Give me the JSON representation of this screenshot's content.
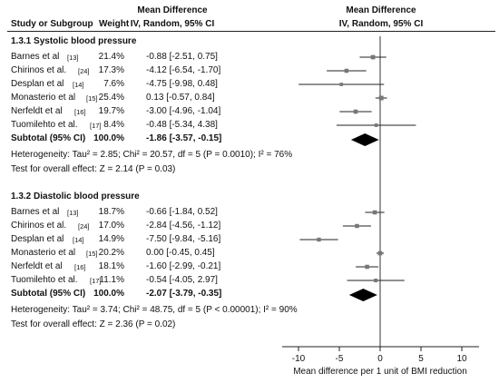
{
  "header": {
    "col_study": "Study or Subgroup",
    "col_weight": "Weight",
    "left_title_1": "Mean Difference",
    "left_title_2": "IV, Random, 95% CI",
    "right_title_1": "Mean Difference",
    "right_title_2": "IV, Random, 95% CI"
  },
  "groups": [
    {
      "title": "1.3.1 Systolic blood pressure",
      "studies": [
        {
          "name": "Barnes et al",
          "ref": "[13]",
          "weight": "21.4%",
          "ci_text": "-0.88 [-2.51, 0.75]",
          "md": -0.88,
          "lo": -2.51,
          "hi": 0.75,
          "w": 21.4
        },
        {
          "name": "Chirinos et al.",
          "ref": "[24]",
          "weight": "17.3%",
          "ci_text": "-4.12 [-6.54, -1.70]",
          "md": -4.12,
          "lo": -6.54,
          "hi": -1.7,
          "w": 17.3
        },
        {
          "name": "Desplan et al",
          "ref": "[14]",
          "weight": "7.6%",
          "ci_text": "-4.75 [-9.98, 0.48]",
          "md": -4.75,
          "lo": -9.98,
          "hi": 0.48,
          "w": 7.6
        },
        {
          "name": "Monasterio et al",
          "ref": "[15]",
          "weight": "25.4%",
          "ci_text": "0.13 [-0.57, 0.84]",
          "md": 0.13,
          "lo": -0.57,
          "hi": 0.84,
          "w": 25.4
        },
        {
          "name": "Nerfeldt et al",
          "ref": "[16]",
          "weight": "19.7%",
          "ci_text": "-3.00 [-4.96, -1.04]",
          "md": -3.0,
          "lo": -4.96,
          "hi": -1.04,
          "w": 19.7
        },
        {
          "name": "Tuomilehto et al.",
          "ref": "[17]",
          "weight": "8.4%",
          "ci_text": "-0.48 [-5.34, 4.38]",
          "md": -0.48,
          "lo": -5.34,
          "hi": 4.38,
          "w": 8.4
        }
      ],
      "subtotal": {
        "label": "Subtotal (95% CI)",
        "weight": "100.0%",
        "ci_text": "-1.86 [-3.57, -0.15]",
        "md": -1.86,
        "lo": -3.57,
        "hi": -0.15
      },
      "heterogeneity": "Heterogeneity: Tau² = 2.85; Chi² = 20.57, df = 5 (P = 0.0010); I² = 76%",
      "overall": "Test for overall effect: Z = 2.14 (P = 0.03)"
    },
    {
      "title": "1.3.2 Diastolic blood pressure",
      "studies": [
        {
          "name": "Barnes et al",
          "ref": "[13]",
          "weight": "18.7%",
          "ci_text": "-0.66 [-1.84, 0.52]",
          "md": -0.66,
          "lo": -1.84,
          "hi": 0.52,
          "w": 18.7
        },
        {
          "name": "Chirinos et al.",
          "ref": "[24]",
          "weight": "17.0%",
          "ci_text": "-2.84 [-4.56, -1.12]",
          "md": -2.84,
          "lo": -4.56,
          "hi": -1.12,
          "w": 17.0
        },
        {
          "name": "Desplan et al",
          "ref": "[14]",
          "weight": "14.9%",
          "ci_text": "-7.50 [-9.84, -5.16]",
          "md": -7.5,
          "lo": -9.84,
          "hi": -5.16,
          "w": 14.9
        },
        {
          "name": "Monasterio et al",
          "ref": "[15]",
          "weight": "20.2%",
          "ci_text": "0.00 [-0.45, 0.45]",
          "md": 0.0,
          "lo": -0.45,
          "hi": 0.45,
          "w": 20.2
        },
        {
          "name": "Nerfeldt et al",
          "ref": "[16]",
          "weight": "18.1%",
          "ci_text": "-1.60 [-2.99, -0.21]",
          "md": -1.6,
          "lo": -2.99,
          "hi": -0.21,
          "w": 18.1
        },
        {
          "name": "Tuomilehto et al.",
          "ref": "[17]",
          "weight": "11.1%",
          "ci_text": "-0.54 [-4.05, 2.97]",
          "md": -0.54,
          "lo": -4.05,
          "hi": 2.97,
          "w": 11.1
        }
      ],
      "subtotal": {
        "label": "Subtotal (95% CI)",
        "weight": "100.0%",
        "ci_text": "-2.07 [-3.79, -0.35]",
        "md": -2.07,
        "lo": -3.79,
        "hi": -0.35
      },
      "heterogeneity": "Heterogeneity: Tau² = 3.74; Chi² = 48.75, df = 5 (P < 0.00001); I² = 90%",
      "overall": "Test for overall effect: Z = 2.36 (P = 0.02)"
    }
  ],
  "chart_data": {
    "type": "forest",
    "x_ticks": [
      "-10",
      "-5",
      "0",
      "5",
      "10"
    ],
    "x_tick_values": [
      -10,
      -5,
      0,
      5,
      10
    ],
    "xlim": [
      -12,
      12
    ],
    "xlabel": "Mean difference per 1   unit of BMI reduction",
    "null_line": 0
  }
}
